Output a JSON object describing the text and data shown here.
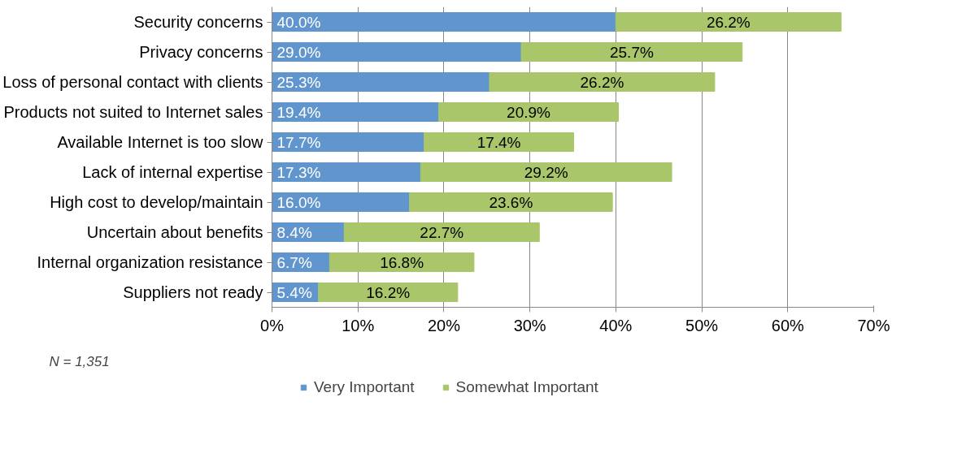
{
  "chart_data": {
    "type": "bar",
    "orientation": "horizontal",
    "stacked": true,
    "categories": [
      "Security concerns",
      "Privacy concerns",
      "Loss of personal contact with clients",
      "Products not suited to Internet sales",
      "Available Internet is too slow",
      "Lack of internal expertise",
      "High cost to develop/maintain",
      "Uncertain about benefits",
      "Internal organization resistance",
      "Suppliers not ready"
    ],
    "series": [
      {
        "name": "Very Important",
        "color": "#6096cd",
        "values": [
          40.0,
          29.0,
          25.3,
          19.4,
          17.7,
          17.3,
          16.0,
          8.4,
          6.7,
          5.4
        ],
        "value_labels": [
          "40.0%",
          "29.0%",
          "25.3%",
          "19.4%",
          "17.7%",
          "17.3%",
          "16.0%",
          "8.4%",
          "6.7%",
          "5.4%"
        ]
      },
      {
        "name": "Somewhat Important",
        "color": "#a9c66b",
        "values": [
          26.2,
          25.7,
          26.2,
          20.9,
          17.4,
          29.2,
          23.6,
          22.7,
          16.8,
          16.2
        ],
        "value_labels": [
          "26.2%",
          "25.7%",
          "26.2%",
          "20.9%",
          "17.4%",
          "29.2%",
          "23.6%",
          "22.7%",
          "16.8%",
          "16.2%"
        ]
      }
    ],
    "xlim": [
      0,
      70
    ],
    "xticks": [
      {
        "value": 0,
        "label": "0%"
      },
      {
        "value": 10,
        "label": "10%"
      },
      {
        "value": 20,
        "label": "20%"
      },
      {
        "value": 30,
        "label": "30%"
      },
      {
        "value": 40,
        "label": "40%"
      },
      {
        "value": 50,
        "label": "50%"
      },
      {
        "value": 60,
        "label": "60%"
      },
      {
        "value": 70,
        "label": "70%"
      }
    ],
    "grid": "x",
    "legend": "bottom",
    "annotations": [
      "N = 1,351"
    ]
  }
}
